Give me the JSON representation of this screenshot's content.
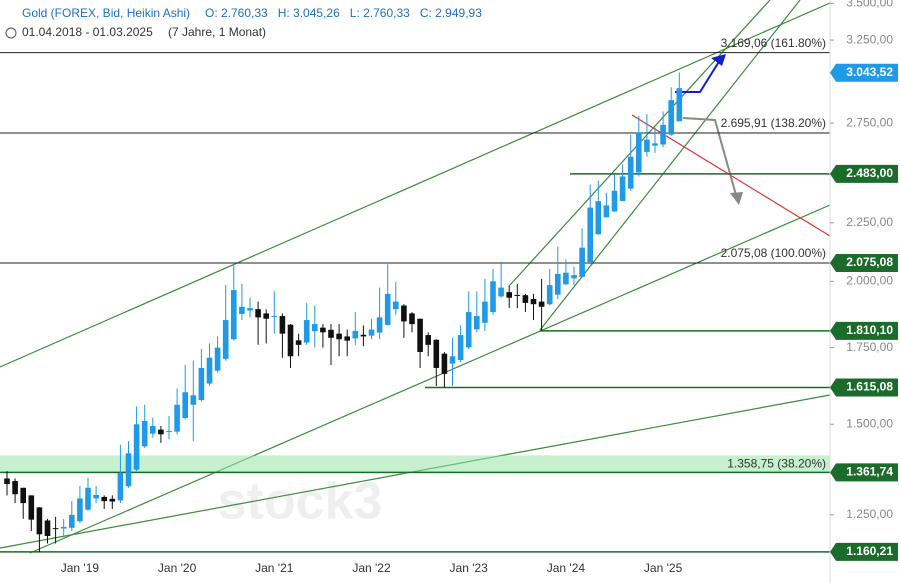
{
  "chart_data": {
    "type": "candlestick",
    "title": "Gold (FOREX, Bid, Heikin Ashi)",
    "ohlc_labels": [
      "O: 2.760,33",
      "H: 3.045,26",
      "L: 2.760,33",
      "C: 2.949,93"
    ],
    "subtitle": "01.04.2018 - 01.03.2025",
    "period": "(7 Jahre, 1 Monat)",
    "watermark": "stock3",
    "log_scale": true,
    "ylim": [
      1153,
      3523
    ],
    "yticks": [
      {
        "value": 1250,
        "label": "1.250,00"
      },
      {
        "value": 1500,
        "label": "1.500,00"
      },
      {
        "value": 1750,
        "label": "1.750,00"
      },
      {
        "value": 2000,
        "label": "2.000,00"
      },
      {
        "value": 2250,
        "label": "2.250,00"
      },
      {
        "value": 2750,
        "label": "2.750,00"
      },
      {
        "value": 3250,
        "label": "3.250,00"
      },
      {
        "value": 3500,
        "label": "3.500,00"
      }
    ],
    "up_color": "#1f9ae6",
    "down_color": "#111111",
    "categories": [
      null,
      null,
      null,
      null,
      null,
      null,
      null,
      null,
      null,
      "Jan '19",
      null,
      null,
      null,
      null,
      null,
      null,
      null,
      null,
      null,
      null,
      null,
      "Jan '20",
      null,
      null,
      null,
      null,
      null,
      null,
      null,
      null,
      null,
      null,
      null,
      "Jan '21",
      null,
      null,
      null,
      null,
      null,
      null,
      null,
      null,
      null,
      null,
      null,
      "Jan '22",
      null,
      null,
      null,
      null,
      null,
      null,
      null,
      null,
      null,
      null,
      null,
      "Jan '23",
      null,
      null,
      null,
      null,
      null,
      null,
      null,
      null,
      null,
      null,
      null,
      "Jan '24",
      null,
      null,
      null,
      null,
      null,
      null,
      null,
      null,
      null,
      null,
      null,
      "Jan '25",
      null,
      null
    ],
    "open": [
      1345,
      1338,
      1320,
      1300,
      1269,
      1236,
      1217,
      1216,
      1218,
      1234,
      1263,
      1292,
      1296,
      1291,
      1287,
      1324,
      1369,
      1435,
      1472,
      1484,
      1477,
      1478,
      1519,
      1560,
      1575,
      1628,
      1671,
      1711,
      1780,
      1873,
      1886,
      1891,
      1875,
      1865,
      1865,
      1833,
      1776,
      1768,
      1809,
      1822,
      1814,
      1800,
      1790,
      1783,
      1796,
      1793,
      1804,
      1832,
      1891,
      1905,
      1875,
      1855,
      1795,
      1778,
      1729,
      1695,
      1707,
      1751,
      1816,
      1840,
      1880,
      1940,
      1957,
      1946,
      1945,
      1930,
      1920,
      1910,
      1947,
      1988,
      2012,
      2018,
      2079,
      2199,
      2275,
      2302,
      2351,
      2410,
      2490,
      2595,
      2628,
      2634,
      2687,
      2760.33
    ],
    "high": [
      1365,
      1345,
      1320,
      1300,
      1270,
      1240,
      1245,
      1240,
      1285,
      1325,
      1347,
      1325,
      1300,
      1300,
      1440,
      1450,
      1555,
      1560,
      1520,
      1495,
      1525,
      1612,
      1690,
      1705,
      1745,
      1765,
      1790,
      1985,
      2075,
      1990,
      1935,
      1920,
      1890,
      1960,
      1875,
      1835,
      1800,
      1915,
      1905,
      1835,
      1835,
      1835,
      1815,
      1880,
      1830,
      1855,
      1975,
      2070,
      1998,
      1910,
      1880,
      1855,
      1805,
      1780,
      1735,
      1785,
      1830,
      1960,
      1960,
      2010,
      2050,
      2080,
      1985,
      1990,
      1950,
      1950,
      2010,
      2050,
      2145,
      2090,
      2060,
      2225,
      2430,
      2450,
      2390,
      2480,
      2530,
      2685,
      2790,
      2800,
      2725,
      2815,
      2955,
      3045.26
    ],
    "low": [
      1300,
      1280,
      1240,
      1210,
      1160,
      1180,
      1180,
      1195,
      1210,
      1230,
      1260,
      1280,
      1265,
      1265,
      1280,
      1320,
      1365,
      1430,
      1460,
      1445,
      1455,
      1470,
      1515,
      1450,
      1570,
      1620,
      1665,
      1705,
      1775,
      1850,
      1860,
      1760,
      1765,
      1800,
      1715,
      1680,
      1720,
      1760,
      1750,
      1750,
      1690,
      1720,
      1720,
      1760,
      1755,
      1780,
      1780,
      1830,
      1870,
      1785,
      1805,
      1680,
      1720,
      1620,
      1615,
      1620,
      1700,
      1745,
      1805,
      1810,
      1870,
      1935,
      1895,
      1895,
      1880,
      1850,
      1810,
      1905,
      1930,
      1985,
      1985,
      2015,
      2070,
      2195,
      2275,
      2300,
      2350,
      2400,
      2470,
      2570,
      2590,
      2620,
      2680,
      2760.33
    ],
    "close": [
      1330,
      1303,
      1280,
      1238,
      1202,
      1198,
      1215,
      1220,
      1250,
      1292,
      1320,
      1301,
      1285,
      1284,
      1360,
      1415,
      1500,
      1510,
      1495,
      1470,
      1480,
      1560,
      1600,
      1590,
      1680,
      1715,
      1750,
      1850,
      1965,
      1900,
      1895,
      1860,
      1855,
      1865,
      1800,
      1720,
      1760,
      1850,
      1835,
      1805,
      1785,
      1780,
      1775,
      1810,
      1790,
      1815,
      1860,
      1950,
      1920,
      1845,
      1835,
      1735,
      1760,
      1680,
      1660,
      1720,
      1795,
      1880,
      1865,
      1920,
      2000,
      1975,
      1935,
      1945,
      1915,
      1910,
      1900,
      1985,
      2030,
      2035,
      2025,
      2140,
      2320,
      2350,
      2330,
      2400,
      2470,
      2570,
      2700,
      2660,
      2640,
      2740,
      2880,
      2949.93
    ],
    "levels": [
      {
        "value": 3169.06,
        "label": "3.169,06 (161.80%)",
        "color": "#222222"
      },
      {
        "value": 2695.91,
        "label": "2.695,91 (138.20%)",
        "color": "#222222"
      },
      {
        "value": 2075.08,
        "label": "2.075,08 (100.00%)",
        "color": "#222222"
      },
      {
        "value": 1358.75,
        "label": "1.358,75 (38.20%)",
        "color": "#98e3a6"
      }
    ],
    "price_tags": [
      {
        "value": 3043.52,
        "label": "3.043,52",
        "color": "#1f9ae6",
        "line": false
      },
      {
        "value": 2483.0,
        "label": "2.483,00",
        "color": "#1b6b2a",
        "line": true
      },
      {
        "value": 2075.08,
        "label": "2.075,08",
        "color": "#1b6b2a",
        "line": false
      },
      {
        "value": 1810.1,
        "label": "1.810,10",
        "color": "#1b6b2a",
        "line": true
      },
      {
        "value": 1615.08,
        "label": "1.615,08",
        "color": "#1b6b2a",
        "line": true
      },
      {
        "value": 1361.74,
        "label": "1.361,74",
        "color": "#1b6b2a",
        "line": true
      },
      {
        "value": 1160.21,
        "label": "1.160,21",
        "color": "#1b6b2a",
        "line": true
      }
    ]
  }
}
